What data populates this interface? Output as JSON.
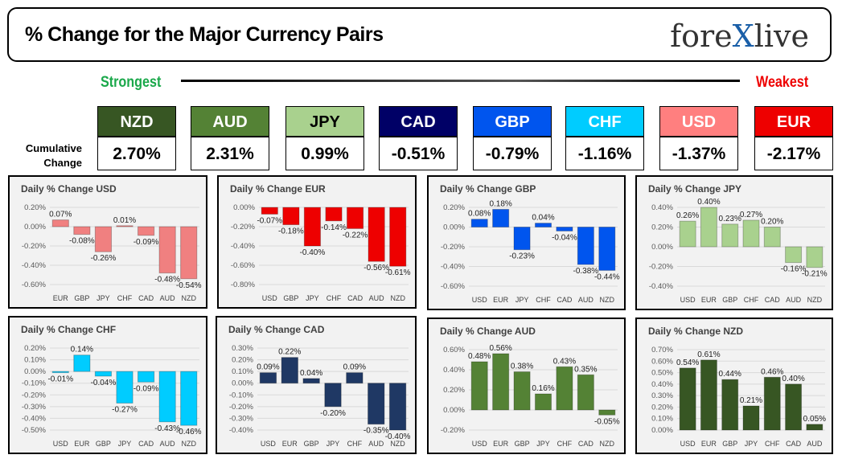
{
  "header": {
    "title": "% Change for the Major Currency Pairs",
    "logo": "forexlive"
  },
  "ranking": {
    "strongest": "Strongest",
    "weakest": "Weakest",
    "row_label": "Cumulative Change",
    "currencies": [
      {
        "name": "NZD",
        "value": "2.70%",
        "color": "#375623"
      },
      {
        "name": "AUD",
        "value": "2.31%",
        "color": "#548235"
      },
      {
        "name": "JPY",
        "value": "0.99%",
        "color": "#a9d18e"
      },
      {
        "name": "CAD",
        "value": "-0.51%",
        "color": "#000066"
      },
      {
        "name": "GBP",
        "value": "-0.79%",
        "color": "#0055ee"
      },
      {
        "name": "CHF",
        "value": "-1.16%",
        "color": "#00ccff"
      },
      {
        "name": "USD",
        "value": "-1.37%",
        "color": "#ff7f7f"
      },
      {
        "name": "EUR",
        "value": "-2.17%",
        "color": "#ee0000"
      }
    ]
  },
  "chart_data": [
    {
      "type": "bar",
      "title": "Daily % Change USD",
      "color": "#f08080",
      "categories": [
        "EUR",
        "GBP",
        "JPY",
        "CHF",
        "CAD",
        "AUD",
        "NZD"
      ],
      "values": [
        0.07,
        -0.08,
        -0.26,
        0.01,
        -0.09,
        -0.48,
        -0.54
      ],
      "ylim": [
        -0.6,
        0.2
      ],
      "yticks": [
        0.2,
        0,
        -0.2,
        -0.4,
        -0.6
      ],
      "grid": true
    },
    {
      "type": "bar",
      "title": "Daily % Change EUR",
      "color": "#ee0000",
      "categories": [
        "USD",
        "GBP",
        "JPY",
        "CHF",
        "CAD",
        "AUD",
        "NZD"
      ],
      "values": [
        -0.07,
        -0.18,
        -0.4,
        -0.14,
        -0.22,
        -0.56,
        -0.61
      ],
      "ylim": [
        -0.8,
        0
      ],
      "yticks": [
        0,
        -0.2,
        -0.4,
        -0.6,
        -0.8
      ],
      "grid": true
    },
    {
      "type": "bar",
      "title": "Daily % Change GBP",
      "color": "#0055ee",
      "categories": [
        "USD",
        "EUR",
        "JPY",
        "CHF",
        "CAD",
        "AUD",
        "NZD"
      ],
      "values": [
        0.08,
        0.18,
        -0.23,
        0.04,
        -0.04,
        -0.38,
        -0.44
      ],
      "ylim": [
        -0.6,
        0.2
      ],
      "yticks": [
        0.2,
        0,
        -0.2,
        -0.4,
        -0.6
      ],
      "grid": true
    },
    {
      "type": "bar",
      "title": "Daily % Change JPY",
      "color": "#a9d18e",
      "categories": [
        "USD",
        "EUR",
        "GBP",
        "CHF",
        "CAD",
        "AUD",
        "NZD"
      ],
      "values": [
        0.26,
        0.4,
        0.23,
        0.27,
        0.2,
        -0.16,
        -0.21
      ],
      "ylim": [
        -0.4,
        0.4
      ],
      "yticks": [
        0.4,
        0.2,
        0,
        -0.2,
        -0.4
      ],
      "grid": true
    },
    {
      "type": "bar",
      "title": "Daily % Change CHF",
      "color": "#00ccff",
      "categories": [
        "USD",
        "EUR",
        "GBP",
        "JPY",
        "CAD",
        "AUD",
        "NZD"
      ],
      "values": [
        -0.01,
        0.14,
        -0.04,
        -0.27,
        -0.09,
        -0.43,
        -0.46
      ],
      "ylim": [
        -0.5,
        0.2
      ],
      "yticks": [
        0.2,
        0.1,
        0,
        -0.1,
        -0.2,
        -0.3,
        -0.4,
        -0.5
      ],
      "grid": true
    },
    {
      "type": "bar",
      "title": "Daily % Change CAD",
      "color": "#1f3864",
      "categories": [
        "USD",
        "EUR",
        "GBP",
        "JPY",
        "CHF",
        "AUD",
        "NZD"
      ],
      "values": [
        0.09,
        0.22,
        0.04,
        -0.2,
        0.09,
        -0.35,
        -0.4
      ],
      "ylim": [
        -0.4,
        0.3
      ],
      "yticks": [
        0.3,
        0.2,
        0.1,
        0,
        -0.1,
        -0.2,
        -0.3,
        -0.4
      ],
      "grid": true
    },
    {
      "type": "bar",
      "title": "Daily % Change AUD",
      "color": "#548235",
      "categories": [
        "USD",
        "EUR",
        "GBP",
        "JPY",
        "CHF",
        "CAD",
        "NZD"
      ],
      "values": [
        0.48,
        0.56,
        0.38,
        0.16,
        0.43,
        0.35,
        -0.05
      ],
      "ylim": [
        -0.2,
        0.6
      ],
      "yticks": [
        0.6,
        0.4,
        0.2,
        0,
        -0.2
      ],
      "grid": true
    },
    {
      "type": "bar",
      "title": "Daily % Change NZD",
      "color": "#375623",
      "categories": [
        "USD",
        "EUR",
        "GBP",
        "JPY",
        "CHF",
        "CAD",
        "AUD"
      ],
      "values": [
        0.54,
        0.61,
        0.44,
        0.21,
        0.46,
        0.4,
        0.05
      ],
      "ylim": [
        0,
        0.7
      ],
      "yticks": [
        0.7,
        0.6,
        0.5,
        0.4,
        0.3,
        0.2,
        0.1,
        0
      ],
      "grid": true
    }
  ]
}
